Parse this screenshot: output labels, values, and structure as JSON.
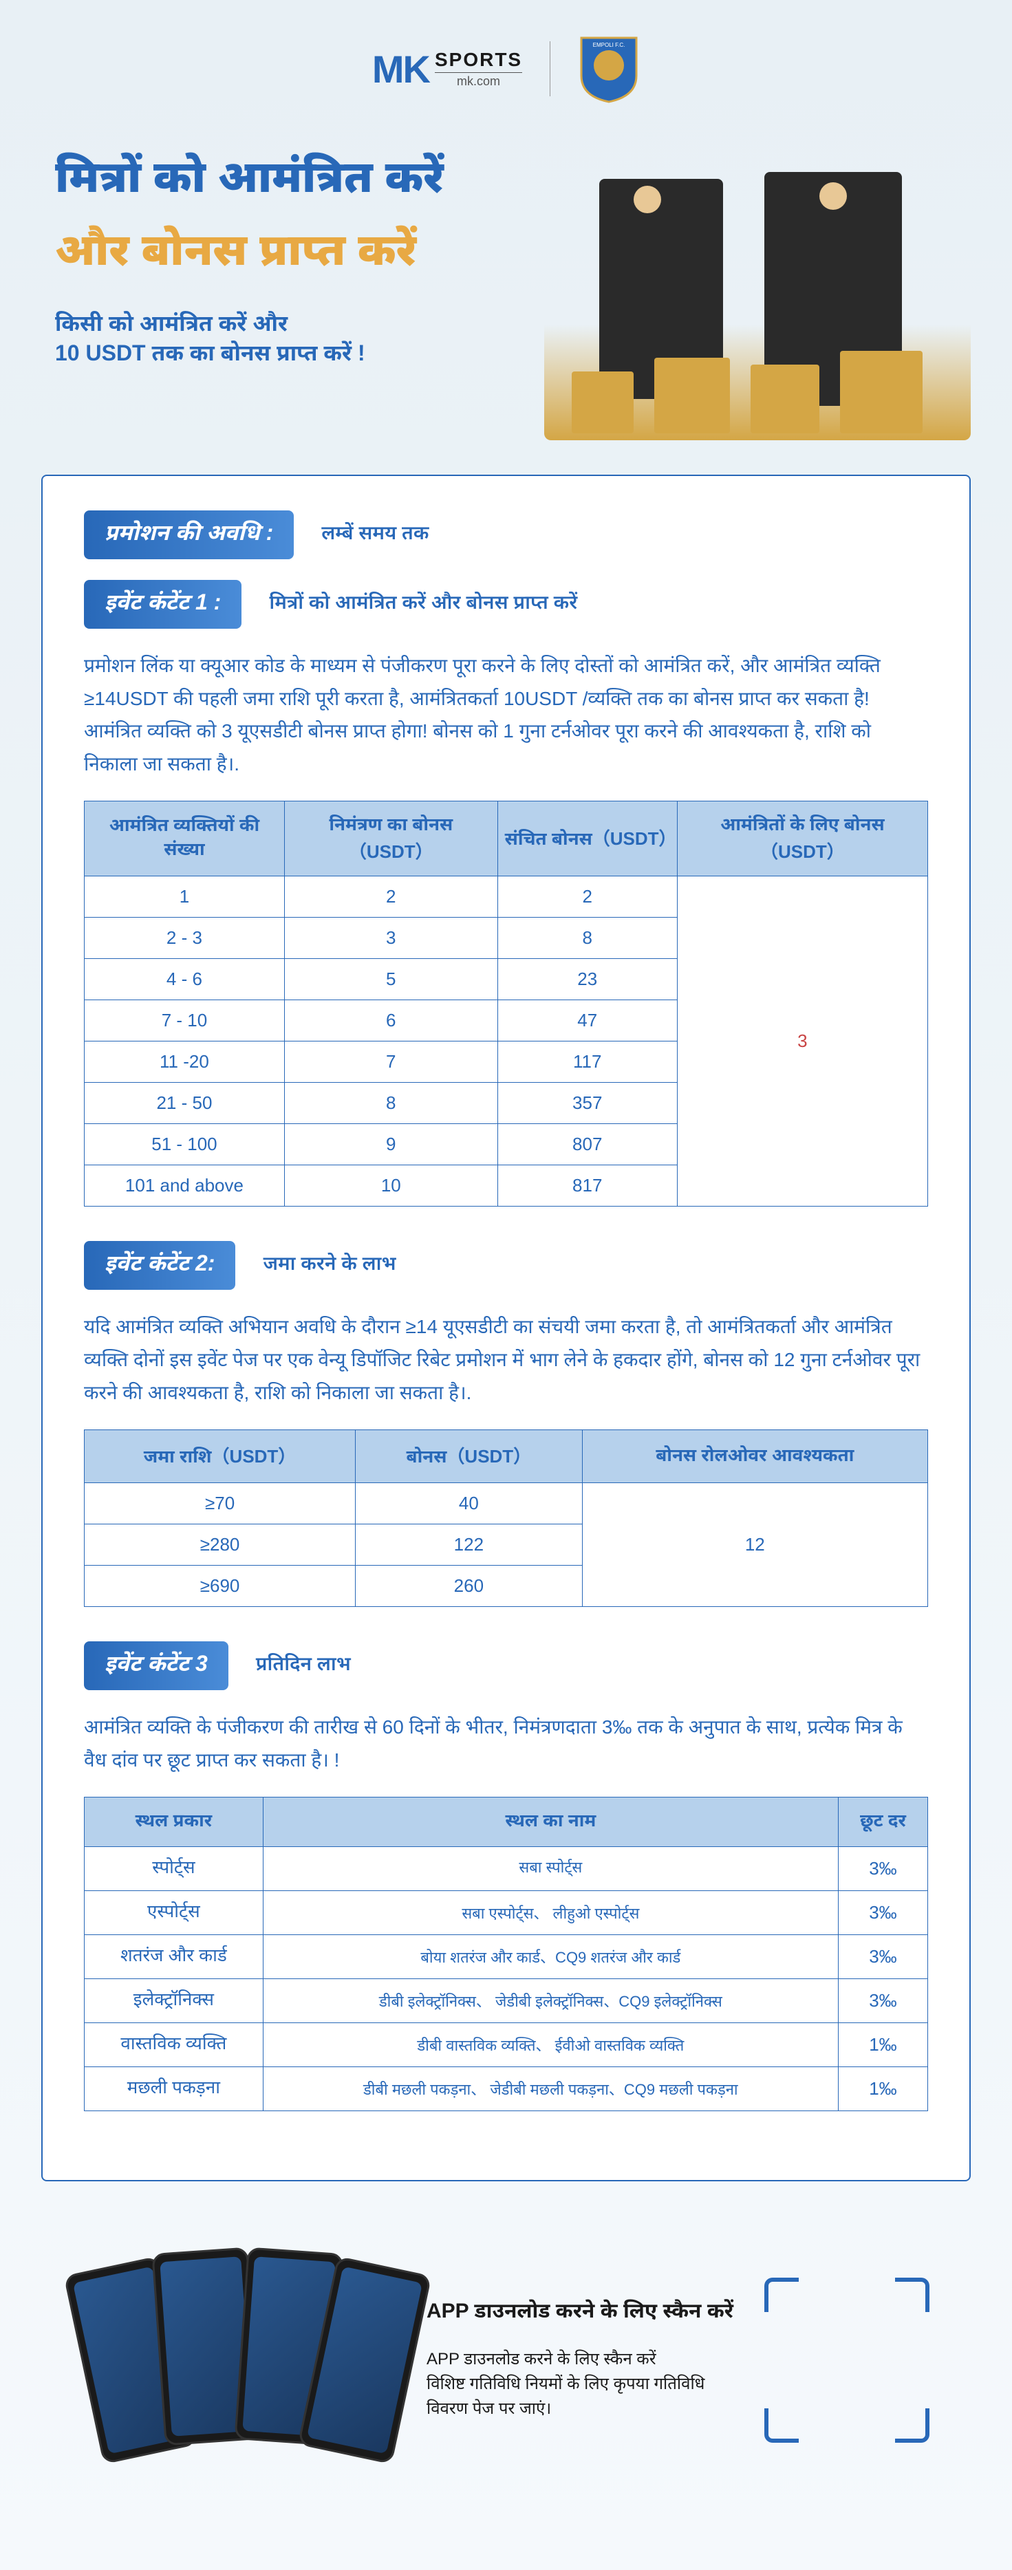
{
  "header": {
    "logo_mk": "MK",
    "logo_sports": "SPORTS",
    "logo_url": "mk.com",
    "badge_text": "EMPOLI F.C."
  },
  "hero": {
    "title_1": "मित्रों को आमंत्रित करें",
    "title_2": "और बोनस प्राप्त करें",
    "sub_1": "किसी को आमंत्रित करें और",
    "sub_2": "10 USDT तक का बोनस प्राप्त करें !"
  },
  "sections": {
    "period_label": "प्रमोशन की अवधि :",
    "period_value": "लम्बें समय तक",
    "event1_label": "इवेंट कंटेंट 1 :",
    "event1_value": "मित्रों को आमंत्रित करें और बोनस प्राप्त करें",
    "event1_body": "प्रमोशन लिंक या क्यूआर कोड के माध्यम से पंजीकरण पूरा करने के लिए दोस्तों को आमंत्रित करें, और आमंत्रित व्यक्ति ≥14USDT की पहली जमा राशि पूरी करता है, आमंत्रितकर्ता 10USDT /व्यक्ति तक का बोनस प्राप्त कर सकता है! आमंत्रित व्यक्ति को 3 यूएसडीटी बोनस प्राप्त होगा! बोनस को 1 गुना टर्नओवर पूरा करने की आवश्यकता है, राशि को निकाला जा सकता है।.",
    "event2_label": "इवेंट कंटेंट 2:",
    "event2_value": "जमा करने के लाभ",
    "event2_body": "यदि आमंत्रित व्यक्ति अभियान अवधि के दौरान ≥14 यूएसडीटी का संचयी जमा करता है, तो आमंत्रितकर्ता और आमंत्रित व्यक्ति दोनों इस इवेंट पेज पर एक वेन्यू डिपॉजिट रिबेट प्रमोशन में भाग लेने के हकदार होंगे, बोनस को 12 गुना टर्नओवर पूरा करने की आवश्यकता है, राशि को निकाला जा सकता है।.",
    "event3_label": "इवेंट कंटेंट 3",
    "event3_value": "प्रतिदिन लाभ",
    "event3_body": "आमंत्रित व्यक्ति के पंजीकरण की तारीख से 60 दिनों के भीतर, निमंत्रणदाता 3‰ तक के अनुपात के साथ, प्रत्येक मित्र के वैध दांव पर छूट प्राप्त कर सकता है। !"
  },
  "table1": {
    "headers": [
      "आमंत्रित व्यक्तियों की संख्या",
      "निमंत्रण का बोनस（USDT）",
      "संचित बोनस（USDT）",
      "आमंत्रितों के लिए बोनस（USDT）"
    ],
    "rows": [
      [
        "1",
        "2",
        "2"
      ],
      [
        "2 - 3",
        "3",
        "8"
      ],
      [
        "4 - 6",
        "5",
        "23"
      ],
      [
        "7 - 10",
        "6",
        "47"
      ],
      [
        "11 -20",
        "7",
        "117"
      ],
      [
        "21 - 50",
        "8",
        "357"
      ],
      [
        "51 - 100",
        "9",
        "807"
      ],
      [
        "101 and above",
        "10",
        "817"
      ]
    ],
    "merged_col4": "3"
  },
  "table2": {
    "headers": [
      "जमा राशि（USDT）",
      "बोनस（USDT）",
      "बोनस रोलओवर आवश्यकता"
    ],
    "rows": [
      [
        "≥70",
        "40"
      ],
      [
        "≥280",
        "122"
      ],
      [
        "≥690",
        "260"
      ]
    ],
    "merged_col3": "12"
  },
  "table3": {
    "headers": [
      "स्थल प्रकार",
      "स्थल का नाम",
      "छूट दर"
    ],
    "rows": [
      [
        "स्पोर्ट्स",
        "सबा स्पोर्ट्स",
        "3‰"
      ],
      [
        "एस्पोर्ट्स",
        "सबा एस्पोर्ट्स、 लीहुओ एस्पोर्ट्स",
        "3‰"
      ],
      [
        "शतरंज और कार्ड",
        "बोया शतरंज और कार्ड、CQ9 शतरंज और कार्ड",
        "3‰"
      ],
      [
        "इलेक्ट्रॉनिक्स",
        "डीबी इलेक्ट्रॉनिक्स、 जेडीबी इलेक्ट्रॉनिक्स、CQ9 इलेक्ट्रॉनिक्स",
        "3‰"
      ],
      [
        "वास्तविक व्यक्ति",
        "डीबी वास्तविक व्यक्ति、 ईवीओ वास्तविक व्यक्ति",
        "1‰"
      ],
      [
        "मछली पकड़ना",
        "डीबी मछली पकड़ना、 जेडीबी मछली पकड़ना、CQ9 मछली पकड़ना",
        "1‰"
      ]
    ]
  },
  "footer": {
    "title": "APP  डाउनलोड करने के लिए स्कैन करें",
    "desc_1": "APP  डाउनलोड करने के लिए स्कैन करें",
    "desc_2": "विशिष्ट गतिविधि नियमों के लिए कृपया गतिविधि विवरण पेज पर जाएं।"
  },
  "colors": {
    "primary": "#2868b8",
    "accent": "#e8a943",
    "th_bg": "#b6d1ec",
    "red": "#c94545"
  }
}
